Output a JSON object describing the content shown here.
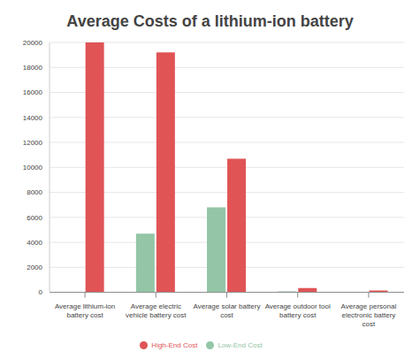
{
  "chart_data": {
    "type": "bar",
    "title": "Average Costs of a lithium-ion battery",
    "categories": [
      "Average lithium-ion battery cost",
      "Average electric vehicle battery cost",
      "Average solar battery cost",
      "Average outdoor tool battery cost",
      "Average personal electronic battery cost"
    ],
    "series": [
      {
        "name": "Low-End Cost",
        "color": "#93c5a6",
        "values": [
          0,
          4700,
          6800,
          80,
          10
        ]
      },
      {
        "name": "High-End Cost",
        "color": "#e05456",
        "values": [
          20000,
          19200,
          10700,
          350,
          150
        ]
      }
    ],
    "ylim": [
      0,
      20000
    ],
    "yticks": [
      0,
      2000,
      4000,
      6000,
      8000,
      10000,
      12000,
      14000,
      16000,
      18000,
      20000
    ],
    "grid": true,
    "legend": "bottom"
  }
}
